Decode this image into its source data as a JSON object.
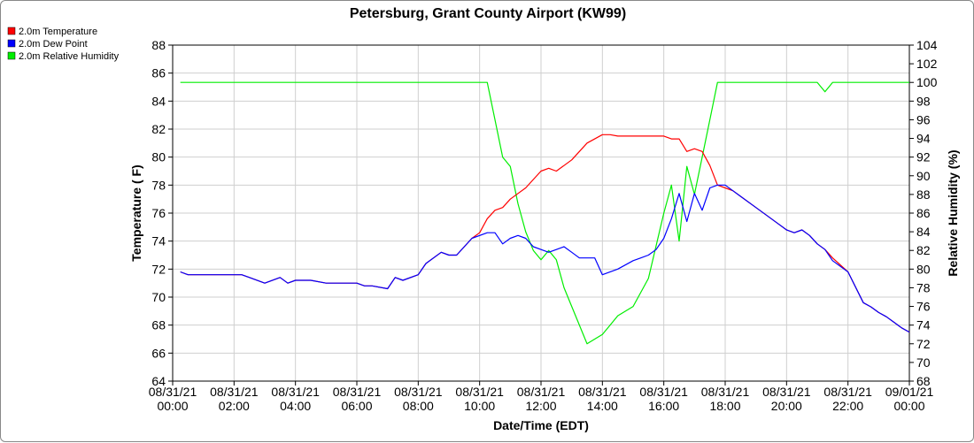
{
  "chart_data": {
    "type": "line",
    "title": "Petersburg, Grant County Airport (KW99)",
    "xlabel": "Date/Time (EDT)",
    "ylabel": "Temperature ( F)",
    "y2label": "Relative Humidity (%)",
    "xlim": [
      0,
      24
    ],
    "ylim": [
      64,
      88
    ],
    "y2lim": [
      68,
      104
    ],
    "y_ticks": [
      "64",
      "66",
      "68",
      "70",
      "72",
      "74",
      "76",
      "78",
      "80",
      "82",
      "84",
      "86",
      "88"
    ],
    "y2_ticks": [
      "68",
      "70",
      "72",
      "74",
      "76",
      "78",
      "80",
      "82",
      "84",
      "86",
      "88",
      "90",
      "92",
      "94",
      "96",
      "98",
      "100",
      "102",
      "104"
    ],
    "x_ticks": [
      {
        "date": "08/31/21",
        "time": "00:00"
      },
      {
        "date": "08/31/21",
        "time": "02:00"
      },
      {
        "date": "08/31/21",
        "time": "04:00"
      },
      {
        "date": "08/31/21",
        "time": "06:00"
      },
      {
        "date": "08/31/21",
        "time": "08:00"
      },
      {
        "date": "08/31/21",
        "time": "10:00"
      },
      {
        "date": "08/31/21",
        "time": "12:00"
      },
      {
        "date": "08/31/21",
        "time": "14:00"
      },
      {
        "date": "08/31/21",
        "time": "16:00"
      },
      {
        "date": "08/31/21",
        "time": "18:00"
      },
      {
        "date": "08/31/21",
        "time": "20:00"
      },
      {
        "date": "08/31/21",
        "time": "22:00"
      },
      {
        "date": "09/01/21",
        "time": "00:00"
      }
    ],
    "legend_position": "top-left",
    "grid": true,
    "series": [
      {
        "name": "2.0m Temperature",
        "color": "#ff0000",
        "axis": "left",
        "x": [
          0.25,
          0.5,
          1,
          2,
          2.25,
          2.5,
          3,
          3.5,
          3.75,
          4,
          4.25,
          4.5,
          5,
          5.25,
          6,
          6.25,
          6.5,
          7,
          7.25,
          7.5,
          8,
          8.25,
          8.75,
          9,
          9.25,
          9.75,
          10,
          10.25,
          10.5,
          10.75,
          11,
          11.25,
          11.5,
          11.75,
          12,
          12.25,
          12.5,
          12.75,
          13,
          13.5,
          14,
          14.25,
          14.5,
          15,
          15.5,
          16,
          16.25,
          16.5,
          16.75,
          17,
          17.25,
          17.5,
          17.75,
          18,
          18.25,
          18.5,
          19,
          19.5,
          19.75,
          20,
          20.25,
          20.5,
          20.75,
          21,
          21.25,
          21.5,
          22,
          22.5,
          22.75,
          23,
          23.25,
          23.5,
          23.75,
          24
        ],
        "y": [
          71.8,
          71.6,
          71.6,
          71.6,
          71.6,
          71.4,
          71.0,
          71.4,
          71.0,
          71.2,
          71.2,
          71.2,
          71.0,
          71.0,
          71.0,
          70.8,
          70.8,
          70.6,
          71.4,
          71.2,
          71.6,
          72.4,
          73.2,
          73.0,
          73.0,
          74.2,
          74.6,
          75.6,
          76.2,
          76.4,
          77.0,
          77.4,
          77.8,
          78.4,
          79.0,
          79.2,
          79.0,
          79.4,
          79.8,
          81.0,
          81.6,
          81.6,
          81.5,
          81.5,
          81.5,
          81.5,
          81.3,
          81.3,
          80.4,
          80.6,
          80.4,
          79.4,
          78.0,
          77.8,
          77.6,
          77.2,
          76.4,
          75.6,
          75.2,
          74.8,
          74.6,
          74.8,
          74.4,
          73.8,
          73.4,
          72.8,
          71.8,
          69.6,
          69.3,
          68.9,
          68.6,
          68.2,
          67.8,
          67.5
        ]
      },
      {
        "name": "2.0m Dew Point",
        "color": "#0000ff",
        "axis": "left",
        "x": [
          0.25,
          0.5,
          1,
          2,
          2.25,
          2.5,
          3,
          3.5,
          3.75,
          4,
          4.25,
          4.5,
          5,
          5.25,
          6,
          6.25,
          6.5,
          7,
          7.25,
          7.5,
          8,
          8.25,
          8.75,
          9,
          9.25,
          9.75,
          10.25,
          10.5,
          10.75,
          11,
          11.25,
          11.5,
          11.75,
          12,
          12.25,
          12.5,
          12.75,
          13,
          13.25,
          13.75,
          14,
          14.5,
          15,
          15.25,
          15.5,
          15.75,
          16,
          16.25,
          16.5,
          16.75,
          17,
          17.25,
          17.5,
          17.75,
          18,
          18.25,
          18.5,
          19,
          19.5,
          19.75,
          20,
          20.25,
          20.5,
          20.75,
          21,
          21.25,
          21.5,
          22,
          22.5,
          22.75,
          23,
          23.25,
          23.5,
          23.75,
          24
        ],
        "y": [
          71.8,
          71.6,
          71.6,
          71.6,
          71.6,
          71.4,
          71.0,
          71.4,
          71.0,
          71.2,
          71.2,
          71.2,
          71.0,
          71.0,
          71.0,
          70.8,
          70.8,
          70.6,
          71.4,
          71.2,
          71.6,
          72.4,
          73.2,
          73.0,
          73.0,
          74.2,
          74.6,
          74.6,
          73.8,
          74.2,
          74.4,
          74.2,
          73.6,
          73.4,
          73.2,
          73.4,
          73.6,
          73.2,
          72.8,
          72.8,
          71.6,
          72.0,
          72.6,
          72.8,
          73.0,
          73.4,
          74.2,
          75.6,
          77.4,
          75.4,
          77.4,
          76.2,
          77.8,
          78.0,
          78.0,
          77.6,
          77.2,
          76.4,
          75.6,
          75.2,
          74.8,
          74.6,
          74.8,
          74.4,
          73.8,
          73.4,
          72.6,
          71.8,
          69.6,
          69.3,
          68.9,
          68.6,
          68.2,
          67.8,
          67.5
        ]
      },
      {
        "name": "2.0m Relative Humidity",
        "color": "#00ee00",
        "axis": "right",
        "x": [
          0.25,
          5,
          10,
          10.25,
          10.5,
          10.75,
          11,
          11.25,
          11.5,
          11.75,
          12,
          12.25,
          12.5,
          12.75,
          13,
          13.5,
          14,
          14.25,
          14.5,
          15,
          15.5,
          16,
          16.25,
          16.5,
          16.75,
          17,
          17.25,
          17.5,
          17.75,
          18,
          18.25,
          18.5,
          19,
          19.5,
          20,
          20.5,
          21,
          21.25,
          21.5,
          22,
          23,
          24
        ],
        "y": [
          100,
          100,
          100,
          100,
          96,
          92,
          91,
          87,
          84,
          82,
          81,
          82,
          81,
          78,
          76,
          72,
          73,
          74,
          75,
          76,
          79,
          86,
          89,
          83,
          91,
          88,
          92,
          96,
          100,
          100,
          100,
          100,
          100,
          100,
          100,
          100,
          100,
          99,
          100,
          100,
          100,
          100
        ]
      }
    ]
  }
}
